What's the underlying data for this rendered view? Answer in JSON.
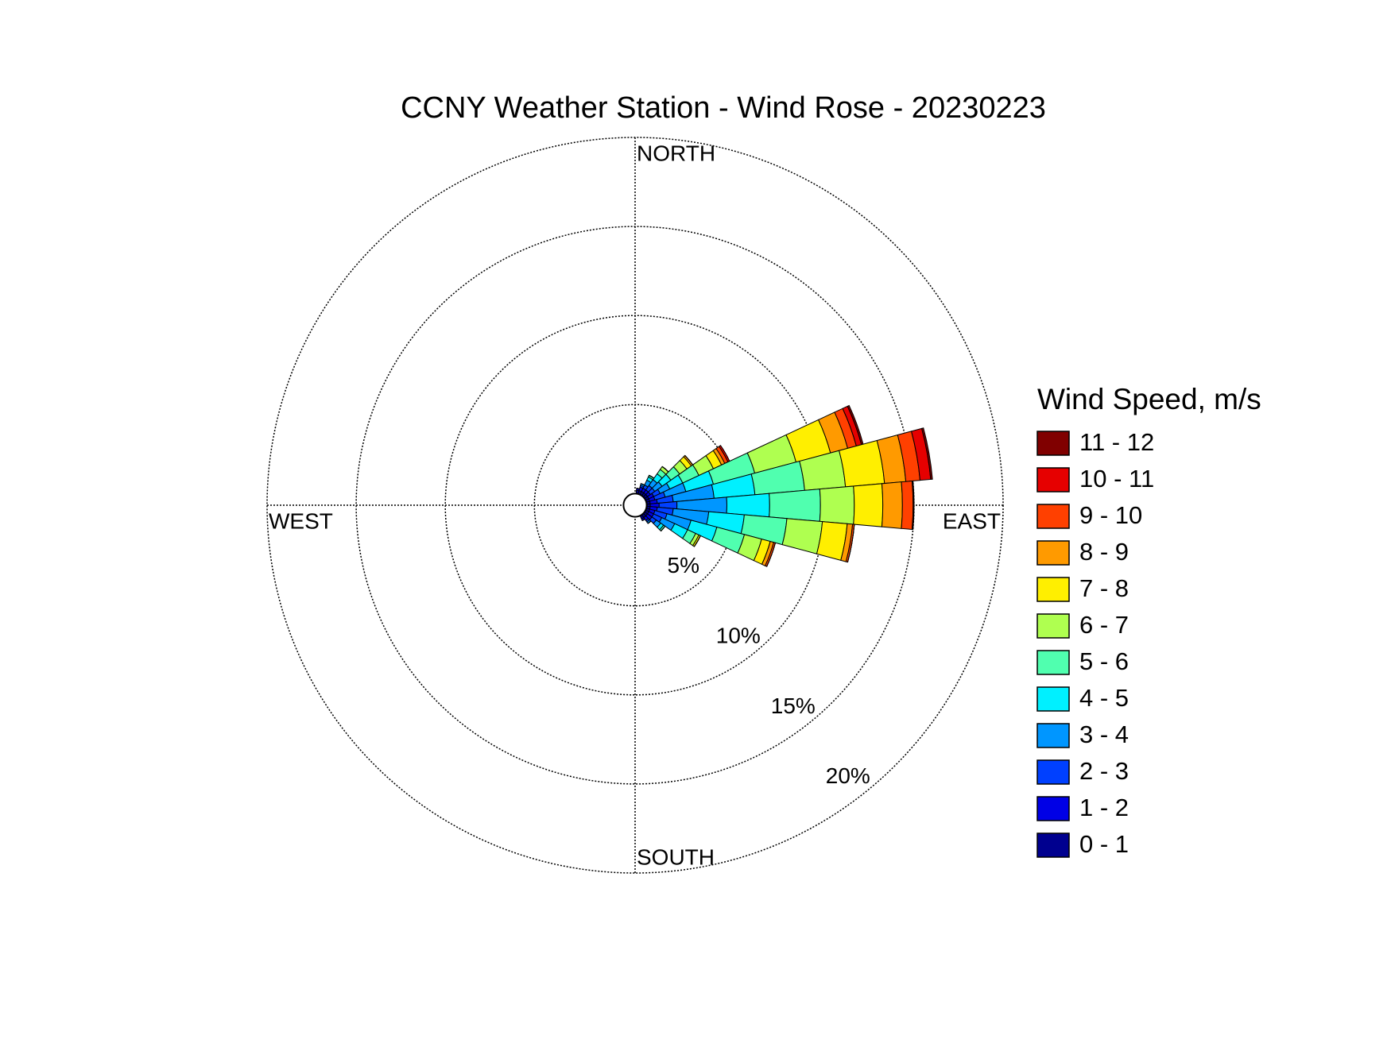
{
  "chart_data": {
    "type": "windrose",
    "title": "CCNY Weather Station - Wind Rose - 20230223",
    "legend_title": "Wind Speed, m/s",
    "direction_labels": {
      "north": "NORTH",
      "east": "EAST",
      "south": "SOUTH",
      "west": "WEST"
    },
    "x": [
      10,
      20,
      30,
      40,
      50,
      60,
      70,
      80,
      90,
      100,
      110,
      120,
      130,
      140,
      150
    ],
    "rlim": [
      0,
      20
    ],
    "rticks": [
      {
        "value": 5,
        "label": "5%"
      },
      {
        "value": 10,
        "label": "10%"
      },
      {
        "value": 15,
        "label": "15%"
      },
      {
        "value": 20,
        "label": "20%"
      }
    ],
    "series": [
      {
        "name": "0 - 1",
        "color": "#00008f",
        "values": [
          0.2,
          0.2,
          0.2,
          0.2,
          0.2,
          0.2,
          0.2,
          0.2,
          0.2,
          0.2,
          0.2,
          0.2,
          0.2,
          0.2,
          0.2
        ]
      },
      {
        "name": "1 - 2",
        "color": "#0000e6",
        "values": [
          0.1,
          0.2,
          0.2,
          0.2,
          0.2,
          0.3,
          0.3,
          0.4,
          0.5,
          0.4,
          0.3,
          0.3,
          0.3,
          0.2,
          0.1
        ]
      },
      {
        "name": "2 - 3",
        "color": "#0040ff",
        "values": [
          0,
          0.1,
          0.2,
          0.3,
          0.3,
          0.4,
          0.6,
          0.9,
          1.0,
          0.9,
          0.7,
          0.5,
          0.3,
          0.1,
          0
        ]
      },
      {
        "name": "3 - 4",
        "color": "#0096ff",
        "values": [
          0,
          0.1,
          0.3,
          0.4,
          0.5,
          0.6,
          1.2,
          2.3,
          2.8,
          2.0,
          1.4,
          0.8,
          0.3,
          0.1,
          0
        ]
      },
      {
        "name": "4 - 5",
        "color": "#00f0ff",
        "values": [
          0,
          0,
          0.2,
          0.4,
          0.6,
          0.8,
          1.6,
          2.3,
          2.4,
          2.0,
          1.5,
          0.8,
          0.2,
          0,
          0
        ]
      },
      {
        "name": "5 - 6",
        "color": "#50ffaf",
        "values": [
          0,
          0,
          0.1,
          0.3,
          0.6,
          1.0,
          2.4,
          2.8,
          2.85,
          2.4,
          1.6,
          0.5,
          0.1,
          0,
          0
        ]
      },
      {
        "name": "6 - 7",
        "color": "#afff50",
        "values": [
          0,
          0,
          0,
          0.2,
          0.5,
          0.9,
          2.4,
          2.3,
          1.9,
          2.0,
          1.0,
          0.2,
          0,
          0,
          0
        ]
      },
      {
        "name": "7 - 8",
        "color": "#ffef00",
        "values": [
          0,
          0,
          0,
          0,
          0.3,
          0.5,
          2.0,
          2.2,
          1.6,
          1.4,
          0.5,
          0.1,
          0,
          0,
          0
        ]
      },
      {
        "name": "8 - 9",
        "color": "#ff9a00",
        "values": [
          0,
          0,
          0,
          0,
          0.1,
          0.2,
          1.0,
          1.2,
          1.1,
          0.3,
          0.2,
          0,
          0,
          0,
          0
        ]
      },
      {
        "name": "9 - 10",
        "color": "#ff4000",
        "values": [
          0,
          0,
          0,
          0,
          0,
          0.2,
          0.5,
          0.8,
          0.6,
          0.1,
          0.1,
          0,
          0,
          0,
          0
        ]
      },
      {
        "name": "10 - 11",
        "color": "#e60000",
        "values": [
          0,
          0,
          0,
          0,
          0,
          0.1,
          0.3,
          0.6,
          0.05,
          0,
          0,
          0,
          0,
          0,
          0
        ]
      },
      {
        "name": "11 - 12",
        "color": "#800000",
        "values": [
          0,
          0,
          0,
          0,
          0,
          0,
          0.1,
          0.1,
          0,
          0,
          0,
          0,
          0,
          0,
          0
        ]
      }
    ]
  }
}
